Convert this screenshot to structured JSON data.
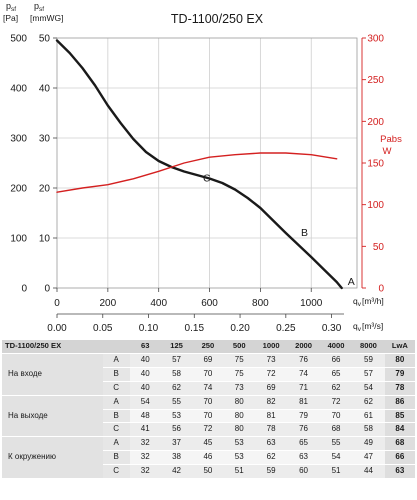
{
  "chart_data": {
    "type": "line",
    "title": "TD-1100/250 EX",
    "left_axis": {
      "label_line1_a": "p",
      "label_line1_b": "p",
      "label_sub": "sf",
      "label_line2_a": "[Pa]",
      "label_line2_b": "[mmWG]",
      "ticks_pa": [
        "500",
        "400",
        "300",
        "200",
        "100",
        "0"
      ],
      "ticks_mmwg": [
        "50",
        "40",
        "30",
        "20",
        "10",
        "0"
      ],
      "ylim_pa": [
        0,
        500
      ],
      "ylim_mmwg": [
        0,
        50
      ]
    },
    "right_axis": {
      "label1": "Pabs",
      "label2": "W",
      "ticks": [
        "300",
        "250",
        "200",
        "150",
        "100",
        "50",
        "0"
      ],
      "ylim": [
        0,
        300
      ]
    },
    "x_axis": {
      "label_m3h": "q",
      "label_m3h_sub": "v",
      "label_m3h_unit": "[m³/h]",
      "label_m3s_unit": "[m³/s]",
      "ticks_m3h": [
        "0",
        "200",
        "400",
        "600",
        "800",
        "1000"
      ],
      "ticks_m3s": [
        "0.00",
        "0.05",
        "0.10",
        "0.15",
        "0.20",
        "0.25",
        "0.30"
      ],
      "xlim_m3h": [
        0,
        1180
      ]
    },
    "series": [
      {
        "name": "",
        "axis": "left",
        "color": "#1a1a1a",
        "x": [
          0,
          50,
          100,
          150,
          200,
          250,
          300,
          350,
          400,
          450,
          500,
          550,
          600,
          650,
          700,
          750,
          800,
          850,
          900,
          950,
          1000,
          1050,
          1100,
          1120
        ],
        "y": [
          495,
          470,
          440,
          405,
          365,
          330,
          298,
          272,
          254,
          242,
          233,
          226,
          219,
          210,
          197,
          180,
          160,
          135,
          110,
          86,
          62,
          37,
          12,
          0
        ]
      },
      {
        "name": "",
        "axis": "right",
        "color": "#d42020",
        "x": [
          0,
          100,
          200,
          300,
          400,
          500,
          600,
          700,
          800,
          900,
          1000,
          1100
        ],
        "y": [
          115,
          120,
          124,
          131,
          140,
          150,
          157,
          160,
          162,
          162,
          160,
          155
        ]
      }
    ],
    "points": [
      {
        "label": "A",
        "x": 1120,
        "y": 0
      },
      {
        "label": "B",
        "x": 940,
        "y": 90
      },
      {
        "label": "C",
        "x": 700,
        "y": 197
      }
    ]
  },
  "table": {
    "model": "TD-1100/250 EX",
    "freq_headers": [
      "63",
      "125",
      "250",
      "500",
      "1000",
      "2000",
      "4000",
      "8000",
      "LwA"
    ],
    "groups": [
      {
        "name": "На входе",
        "rows": [
          {
            "point": "A",
            "values": [
              "40",
              "57",
              "69",
              "75",
              "73",
              "76",
              "66",
              "59"
            ],
            "lwa": "80"
          },
          {
            "point": "B",
            "values": [
              "40",
              "58",
              "70",
              "75",
              "72",
              "74",
              "65",
              "57"
            ],
            "lwa": "79"
          },
          {
            "point": "C",
            "values": [
              "40",
              "62",
              "74",
              "73",
              "69",
              "71",
              "62",
              "54"
            ],
            "lwa": "78"
          }
        ]
      },
      {
        "name": "На выходе",
        "rows": [
          {
            "point": "A",
            "values": [
              "54",
              "55",
              "70",
              "80",
              "82",
              "81",
              "72",
              "62"
            ],
            "lwa": "86"
          },
          {
            "point": "B",
            "values": [
              "48",
              "53",
              "70",
              "80",
              "81",
              "79",
              "70",
              "61"
            ],
            "lwa": "85"
          },
          {
            "point": "C",
            "values": [
              "41",
              "56",
              "72",
              "80",
              "78",
              "76",
              "68",
              "58"
            ],
            "lwa": "84"
          }
        ]
      },
      {
        "name": "К окружению",
        "rows": [
          {
            "point": "A",
            "values": [
              "32",
              "37",
              "45",
              "53",
              "63",
              "65",
              "55",
              "49"
            ],
            "lwa": "68"
          },
          {
            "point": "B",
            "values": [
              "32",
              "38",
              "46",
              "53",
              "62",
              "63",
              "54",
              "47"
            ],
            "lwa": "66"
          },
          {
            "point": "C",
            "values": [
              "32",
              "42",
              "50",
              "51",
              "59",
              "60",
              "51",
              "44"
            ],
            "lwa": "63"
          }
        ]
      }
    ]
  }
}
